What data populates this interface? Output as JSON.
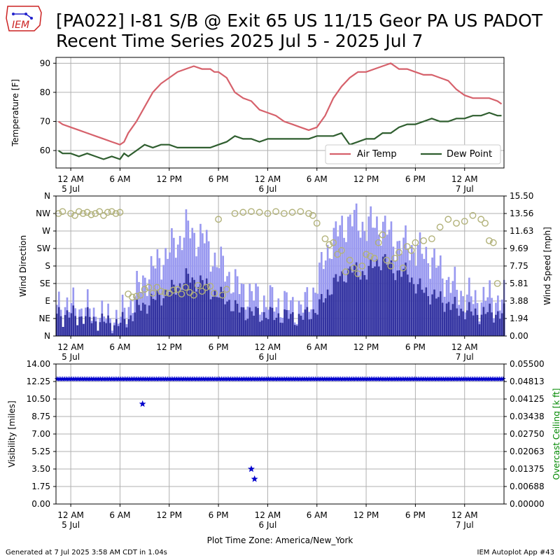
{
  "header": {
    "title_line1": "[PA022] I-81 S/B @ Exit 65 US 11/15 Geor PA US  PADOT",
    "title_line2": "Recent Time Series 2025 Jul 5 - 2025 Jul 7",
    "logo_text": "IEM"
  },
  "footer": {
    "generated": "Generated at 7 Jul 2025 3:58 AM CDT in 1.04s",
    "app": "IEM Autoplot App #43",
    "xlabel": "Plot Time Zone: America/New_York"
  },
  "colors": {
    "air_temp": "#d6616b",
    "dew_point": "#2f5e2f",
    "gust_bar": "#9999f0",
    "speed_bar": "#3333a0",
    "direction_marker": "#b2b27a",
    "visibility": "#0000cc",
    "ceiling_label": "#008800",
    "grid": "#b0b0b0"
  },
  "x_ticks": [
    {
      "h": 0,
      "l1": "12 AM",
      "l2": "5 Jul"
    },
    {
      "h": 6,
      "l1": "6 AM",
      "l2": ""
    },
    {
      "h": 12,
      "l1": "12 PM",
      "l2": ""
    },
    {
      "h": 18,
      "l1": "6 PM",
      "l2": ""
    },
    {
      "h": 24,
      "l1": "12 AM",
      "l2": "6 Jul"
    },
    {
      "h": 30,
      "l1": "6 AM",
      "l2": ""
    },
    {
      "h": 36,
      "l1": "12 PM",
      "l2": ""
    },
    {
      "h": 42,
      "l1": "6 PM",
      "l2": ""
    },
    {
      "h": 48,
      "l1": "12 AM",
      "l2": "7 Jul"
    }
  ],
  "chart_data": [
    {
      "type": "line",
      "ylabel": "Temperature [F]",
      "ylim": [
        54,
        92
      ],
      "yticks": [
        60,
        70,
        80,
        90
      ],
      "xlim_hours": [
        -1.8,
        52.8
      ],
      "legend": "lower-right",
      "grid": true,
      "series": [
        {
          "name": "Air Temp",
          "x": [
            -1.5,
            -1,
            0,
            1,
            2,
            3,
            4,
            5,
            6,
            6.5,
            7,
            8,
            9,
            10,
            11,
            12,
            13,
            14,
            15,
            16,
            17,
            17.5,
            18,
            19,
            20,
            21,
            22,
            23,
            24,
            25,
            26,
            27,
            28,
            29,
            30,
            31,
            32,
            33,
            34,
            35,
            36,
            37,
            38,
            39,
            40,
            41,
            42,
            43,
            44,
            45,
            46,
            47,
            48,
            49,
            50,
            51,
            52,
            52.5
          ],
          "y": [
            70,
            69,
            68,
            67,
            66,
            65,
            64,
            63,
            62,
            63,
            66,
            70,
            75,
            80,
            83,
            85,
            87,
            88,
            89,
            88,
            88,
            87,
            87,
            85,
            80,
            78,
            77,
            74,
            73,
            72,
            70,
            69,
            68,
            67,
            68,
            72,
            78,
            82,
            85,
            87,
            87,
            88,
            89,
            90,
            88,
            88,
            87,
            86,
            86,
            85,
            84,
            81,
            79,
            78,
            78,
            78,
            77,
            76
          ]
        },
        {
          "name": "Dew Point",
          "x": [
            -1.5,
            -1,
            0,
            1,
            2,
            3,
            4,
            5,
            6,
            6.5,
            7,
            8,
            9,
            10,
            11,
            12,
            13,
            14,
            15,
            16,
            17,
            18,
            19,
            20,
            21,
            22,
            23,
            24,
            25,
            26,
            27,
            28,
            29,
            30,
            31,
            32,
            33,
            34,
            35,
            36,
            37,
            38,
            39,
            40,
            41,
            42,
            43,
            44,
            45,
            46,
            47,
            48,
            49,
            50,
            51,
            52,
            52.5
          ],
          "y": [
            60,
            59,
            59,
            58,
            59,
            58,
            57,
            58,
            57,
            59,
            58,
            60,
            62,
            61,
            62,
            62,
            61,
            61,
            61,
            61,
            61,
            62,
            63,
            65,
            64,
            64,
            63,
            64,
            64,
            64,
            64,
            64,
            64,
            65,
            65,
            65,
            66,
            62,
            63,
            64,
            64,
            66,
            66,
            68,
            69,
            69,
            70,
            71,
            70,
            70,
            71,
            71,
            72,
            72,
            73,
            72,
            72
          ]
        }
      ]
    },
    {
      "type": "bar",
      "ylabel": "Wind Direction",
      "ylabel_right": "Wind Speed [mph]",
      "dir_ticks": [
        "N",
        "NE",
        "E",
        "SE",
        "S",
        "SW",
        "W",
        "NW",
        "N"
      ],
      "speed_ticks": [
        "0.00",
        "1.94",
        "3.88",
        "5.81",
        "7.75",
        "9.69",
        "11.63",
        "13.56",
        "15.50"
      ],
      "speed_lim": [
        0,
        15.5
      ],
      "xlim_hours": [
        -1.8,
        52.8
      ],
      "grid": true,
      "wind_speed": {
        "x": [
          -1.8,
          0,
          2,
          4,
          6,
          7,
          8,
          9,
          10,
          11,
          12,
          13,
          14,
          15,
          16,
          17,
          18,
          19,
          20,
          21,
          22,
          23,
          24,
          26,
          28,
          29,
          30,
          31,
          32,
          33,
          34,
          35,
          36,
          37,
          38,
          39,
          40,
          41,
          42,
          43,
          44,
          45,
          46,
          47,
          48,
          49,
          50,
          51,
          52,
          52.8
        ],
        "y": [
          2.5,
          2.3,
          2.0,
          1.5,
          1.4,
          2.0,
          3.0,
          3.5,
          4.0,
          4.5,
          5.0,
          5.5,
          6.5,
          6.0,
          6.0,
          5.0,
          4.5,
          4.0,
          3.0,
          2.8,
          2.5,
          2.4,
          2.3,
          2.2,
          2.0,
          2.5,
          3.0,
          4.5,
          6.0,
          6.5,
          7.5,
          7.0,
          7.0,
          8.0,
          8.5,
          7.5,
          7.0,
          7.0,
          5.5,
          5.0,
          4.5,
          4.0,
          3.5,
          3.0,
          2.8,
          2.5,
          2.5,
          2.6,
          2.5,
          2.4
        ]
      },
      "wind_gust": {
        "x": [
          -1.8,
          0,
          2,
          4,
          6,
          7,
          8,
          9,
          10,
          11,
          12,
          13,
          14,
          15,
          16,
          17,
          18,
          19,
          20,
          21,
          22,
          23,
          24,
          26,
          28,
          29,
          30,
          31,
          32,
          33,
          34,
          35,
          36,
          37,
          38,
          39,
          40,
          41,
          42,
          43,
          44,
          45,
          46,
          47,
          48,
          49,
          50,
          51,
          52,
          52.8
        ],
        "y": [
          3.5,
          3.2,
          2.8,
          2.0,
          2.0,
          3.5,
          5.0,
          6.5,
          7.5,
          8.5,
          9.5,
          10.5,
          12.0,
          11.0,
          11.0,
          9.0,
          8.0,
          7.0,
          5.5,
          5.0,
          4.5,
          4.0,
          3.8,
          3.5,
          3.0,
          4.0,
          6.0,
          9.0,
          11.0,
          12.0,
          13.0,
          12.5,
          12.0,
          12.5,
          12.0,
          11.0,
          10.0,
          10.0,
          9.5,
          9.0,
          8.5,
          7.0,
          6.0,
          5.0,
          4.5,
          4.0,
          4.0,
          4.2,
          4.0,
          3.8
        ]
      },
      "wind_direction": {
        "x": [
          -1.5,
          -1,
          0,
          0.5,
          1,
          1.5,
          2,
          2.5,
          3,
          3.5,
          4,
          4.5,
          5,
          5.5,
          6,
          7,
          7.5,
          8,
          8.5,
          9,
          9.5,
          10,
          10.5,
          11,
          11.5,
          12,
          12.5,
          13,
          13.5,
          14,
          14.5,
          15,
          15.5,
          16,
          16.5,
          17,
          17.5,
          18,
          18.5,
          19,
          20,
          21,
          22,
          23,
          24,
          25,
          26,
          27,
          28,
          29,
          29.5,
          30,
          31,
          31.5,
          32,
          32.5,
          33,
          33.5,
          34,
          34.5,
          35,
          35.5,
          36,
          36.5,
          37,
          37.5,
          38,
          38.5,
          39,
          39.5,
          40,
          40.5,
          41,
          41.5,
          42,
          43,
          44,
          45,
          46,
          47,
          48,
          49,
          50,
          50.5,
          51,
          51.5,
          52
        ],
        "y": [
          315,
          320,
          315,
          310,
          320,
          315,
          318,
          312,
          315,
          320,
          310,
          318,
          320,
          315,
          318,
          108,
          100,
          102,
          105,
          120,
          125,
          110,
          125,
          115,
          112,
          110,
          118,
          120,
          108,
          125,
          112,
          105,
          130,
          115,
          125,
          128,
          110,
          300,
          105,
          120,
          315,
          318,
          320,
          318,
          315,
          320,
          315,
          318,
          320,
          315,
          310,
          290,
          250,
          235,
          240,
          210,
          220,
          165,
          195,
          175,
          160,
          180,
          210,
          205,
          200,
          240,
          260,
          195,
          180,
          200,
          215,
          175,
          230,
          220,
          240,
          245,
          250,
          280,
          300,
          290,
          295,
          310,
          300,
          290,
          245,
          240,
          135
        ]
      }
    },
    {
      "type": "scatter",
      "ylabel": "Visibility [miles]",
      "ylabel_right": "Overcast Ceiling [k ft]",
      "ylim": [
        0,
        14
      ],
      "yticks": [
        "0.00",
        "1.75",
        "3.50",
        "5.25",
        "7.00",
        "8.75",
        "10.50",
        "12.25",
        "14.00"
      ],
      "yticks_right": [
        "0.00000",
        "0.00688",
        "0.01375",
        "0.02063",
        "0.02750",
        "0.03438",
        "0.04125",
        "0.04813",
        "0.05500"
      ],
      "xlim_hours": [
        -1.8,
        52.8
      ],
      "grid": true,
      "baseline_visibility": 12.5,
      "points": [
        {
          "x": 8.75,
          "y": 10.0
        },
        {
          "x": 22.0,
          "y": 3.5
        },
        {
          "x": 22.4,
          "y": 2.5
        }
      ]
    }
  ]
}
